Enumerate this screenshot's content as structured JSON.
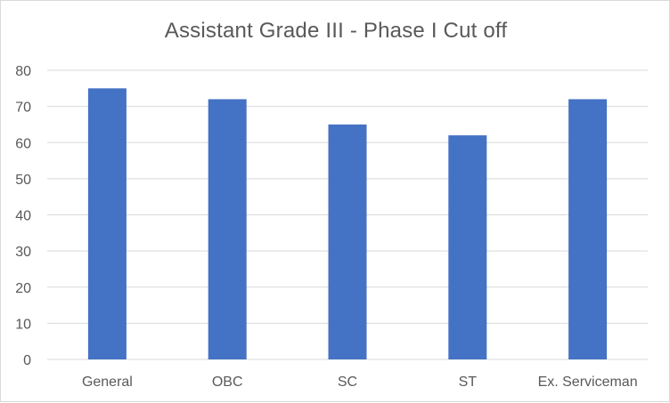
{
  "chart_data": {
    "type": "bar",
    "title": "Assistant Grade III - Phase I Cut off",
    "categories": [
      "General",
      "OBC",
      "SC",
      "ST",
      "Ex. Serviceman"
    ],
    "values": [
      75,
      72,
      65,
      62,
      72
    ],
    "ylim": [
      0,
      80
    ],
    "yticks": [
      0,
      10,
      20,
      30,
      40,
      50,
      60,
      70,
      80
    ],
    "grid": true,
    "legend": "none",
    "bar_color": "#4472C4",
    "grid_color": "#d9d9d9",
    "text_color": "#595959"
  }
}
